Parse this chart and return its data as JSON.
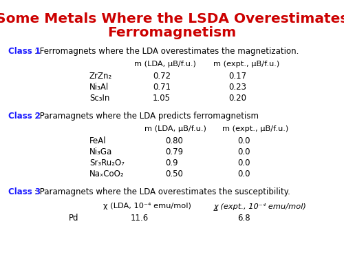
{
  "title_line1": "Some Metals Where the LSDA Overestimates",
  "title_line2": "Ferromagnetism",
  "title_color": "#cc0000",
  "body_color": "#000000",
  "label_color": "#1a1aff",
  "background_color": "#ffffff",
  "class1_label": "Class 1",
  "class1_text": ": Ferromagnets where the LDA overestimates the magnetization.",
  "class1_data": [
    [
      "ZrZn₂",
      "0.72",
      "0.17"
    ],
    [
      "Ni₃Al",
      "0.71",
      "0.23"
    ],
    [
      "Sc₃In",
      "1.05",
      "0.20"
    ]
  ],
  "class2_label": "Class 2",
  "class2_text": ": Paramagnets where the LDA predicts ferromagnetism",
  "class2_data": [
    [
      "FeAl",
      "0.80",
      "0.0"
    ],
    [
      "Ni₃Ga",
      "0.79",
      "0.0"
    ],
    [
      "Sr₃Ru₂O₇",
      "0.9",
      "0.0"
    ],
    [
      "NaₓCoO₂",
      "0.50",
      "0.0"
    ]
  ],
  "class3_label": "Class 3",
  "class3_text": ": Paramagnets where the LDA overestimates the susceptibility.",
  "class3_data": [
    [
      "Pd",
      "11.6",
      "6.8"
    ]
  ]
}
